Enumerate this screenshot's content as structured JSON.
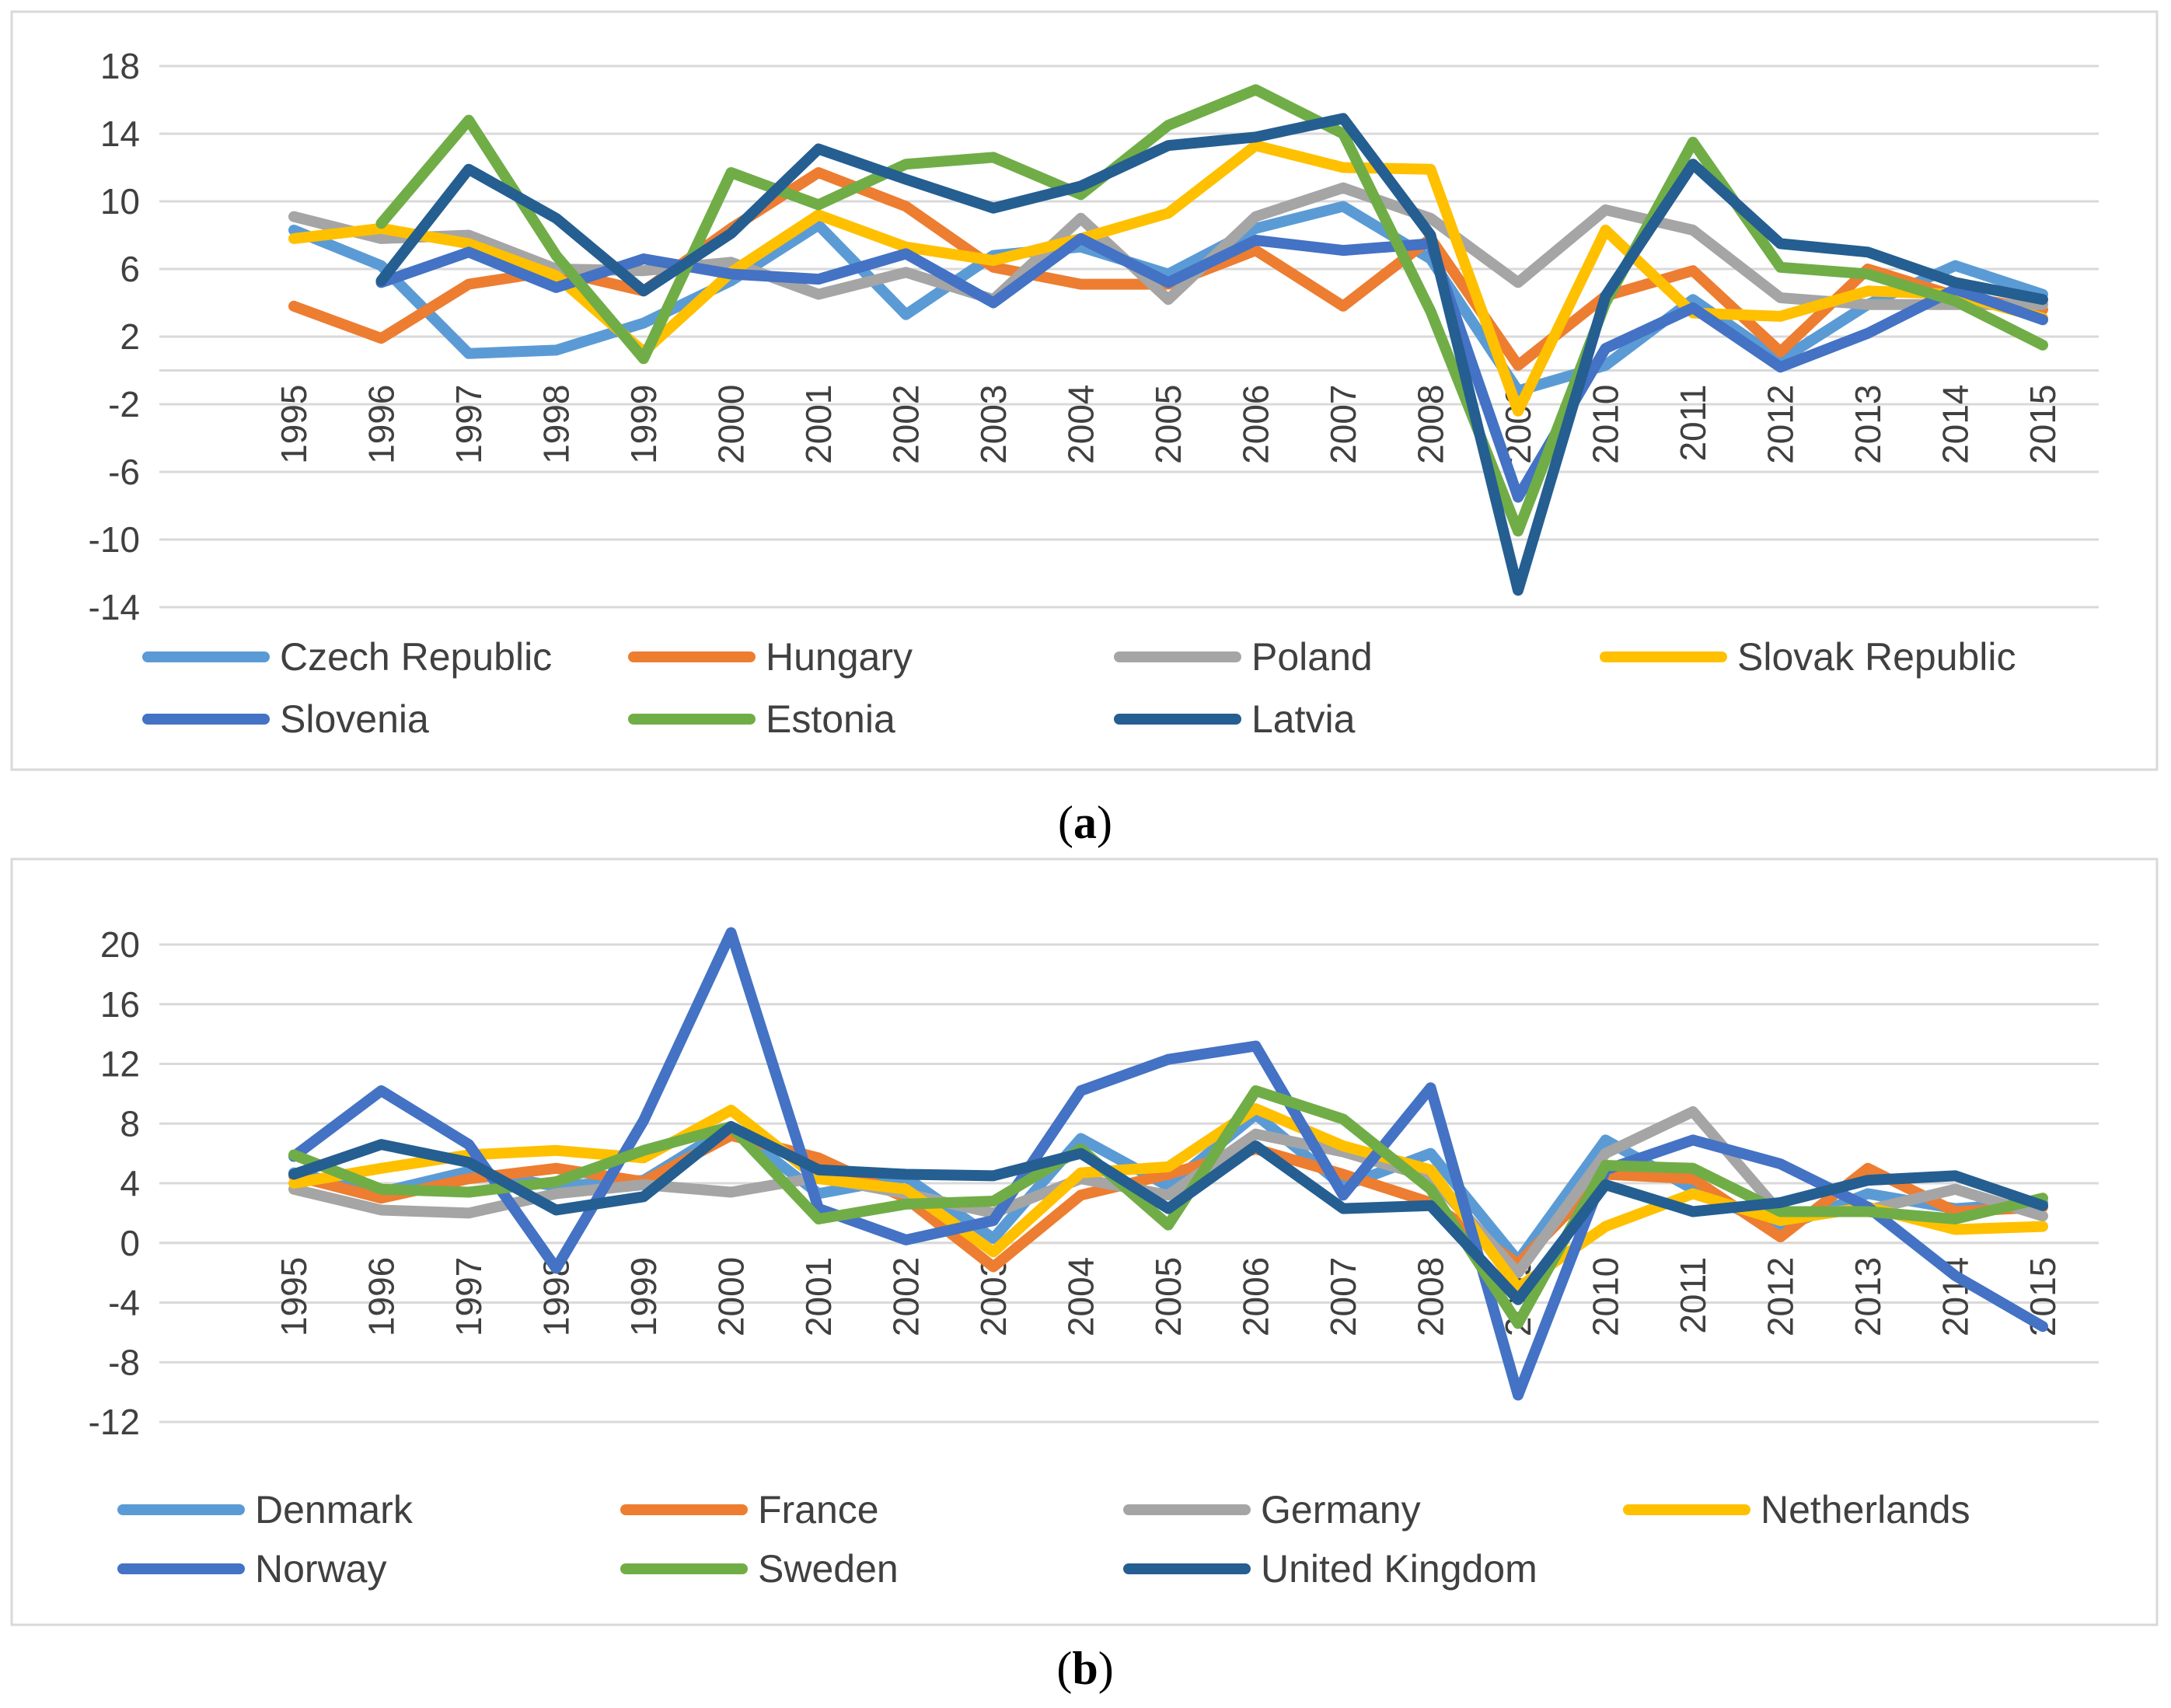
{
  "figure": {
    "caption_a_open": "(",
    "caption_a_letter": "a",
    "caption_a_close": ")",
    "caption_b_open": "(",
    "caption_b_letter": "b",
    "caption_b_close": ")"
  },
  "chart_data": [
    {
      "panel": "a",
      "type": "line",
      "title": "",
      "xlabel": "",
      "ylabel": "",
      "x": [
        "1995",
        "1996",
        "1997",
        "1998",
        "1999",
        "2000",
        "2001",
        "2002",
        "2003",
        "2004",
        "2005",
        "2006",
        "2007",
        "2008",
        "2009",
        "2010",
        "2011",
        "2012",
        "2013",
        "2014",
        "2015"
      ],
      "yticks": [
        18,
        14,
        10,
        6,
        2,
        -2,
        -6,
        -10,
        -14
      ],
      "ylim": [
        -14,
        18
      ],
      "legend_position": "bottom",
      "series": [
        {
          "name": "Czech Republic",
          "color": "#5b9bd5",
          "values": [
            8.3,
            6.2,
            1.0,
            1.2,
            2.8,
            5.3,
            8.6,
            3.3,
            6.8,
            7.3,
            5.7,
            8.4,
            9.7,
            6.6,
            -1.2,
            0.3,
            4.2,
            0.6,
            3.9,
            6.2,
            4.5
          ]
        },
        {
          "name": "Hungary",
          "color": "#ed7d31",
          "values": [
            3.8,
            1.9,
            5.1,
            5.9,
            4.7,
            8.4,
            11.7,
            9.7,
            6.1,
            5.1,
            5.1,
            7.1,
            3.8,
            7.8,
            0.3,
            4.4,
            5.9,
            1.1,
            6.0,
            4.4,
            3.6
          ]
        },
        {
          "name": "Poland",
          "color": "#a5a5a5",
          "values": [
            9.1,
            7.8,
            8.0,
            6.0,
            5.9,
            6.4,
            4.5,
            5.8,
            4.2,
            9.0,
            4.2,
            9.1,
            10.8,
            9.0,
            5.2,
            9.5,
            8.3,
            4.3,
            3.9,
            3.9,
            3.9
          ]
        },
        {
          "name": "Slovak Republic",
          "color": "#ffc000",
          "values": [
            7.8,
            8.4,
            7.5,
            5.6,
            1.1,
            5.8,
            9.2,
            7.3,
            6.5,
            7.8,
            9.3,
            13.3,
            12.0,
            11.9,
            -2.4,
            8.3,
            3.4,
            3.2,
            4.7,
            4.5,
            3.1
          ]
        },
        {
          "name": "Slovenia",
          "color": "#4472c4",
          "values": [
            null,
            5.2,
            7.0,
            4.9,
            6.6,
            5.7,
            5.4,
            6.9,
            4.0,
            7.8,
            5.2,
            7.7,
            7.1,
            7.5,
            -7.5,
            1.3,
            3.7,
            0.2,
            2.2,
            4.8,
            3.0
          ]
        },
        {
          "name": "Estonia",
          "color": "#70ad47",
          "values": [
            null,
            8.7,
            14.8,
            6.8,
            0.7,
            11.7,
            9.8,
            12.2,
            12.6,
            10.4,
            14.5,
            16.6,
            14.0,
            3.5,
            -9.5,
            4.0,
            13.5,
            6.1,
            5.7,
            4.1,
            1.5
          ]
        },
        {
          "name": "Latvia",
          "color": "#255e91",
          "values": [
            null,
            5.3,
            11.9,
            9.0,
            4.7,
            8.1,
            13.1,
            11.3,
            9.6,
            10.9,
            13.3,
            13.8,
            14.9,
            8.0,
            -13.0,
            4.4,
            12.2,
            7.5,
            7.0,
            5.2,
            4.2
          ]
        }
      ]
    },
    {
      "panel": "b",
      "type": "line",
      "title": "",
      "xlabel": "",
      "ylabel": "",
      "x": [
        "1995",
        "1996",
        "1997",
        "1998",
        "1999",
        "2000",
        "2001",
        "2002",
        "2003",
        "2004",
        "2005",
        "2006",
        "2007",
        "2008",
        "2009",
        "2010",
        "2011",
        "2012",
        "2013",
        "2014",
        "2015"
      ],
      "yticks": [
        20,
        16,
        12,
        8,
        4,
        0,
        -4,
        -8,
        -12
      ],
      "ylim": [
        -12,
        20
      ],
      "legend_position": "bottom",
      "series": [
        {
          "name": "Denmark",
          "color": "#5b9bd5",
          "values": [
            4.7,
            3.4,
            4.8,
            3.8,
            4.2,
            7.8,
            3.3,
            4.4,
            0.3,
            7.0,
            3.8,
            8.6,
            3.8,
            6.0,
            -1.2,
            6.9,
            3.6,
            1.0,
            3.3,
            2.3,
            2.7
          ]
        },
        {
          "name": "France",
          "color": "#ed7d31",
          "values": [
            4.5,
            3.0,
            4.3,
            5.0,
            4.1,
            7.2,
            5.7,
            3.0,
            -1.6,
            3.2,
            4.6,
            6.3,
            4.6,
            2.7,
            -1.4,
            4.6,
            4.3,
            0.4,
            5.0,
            2.1,
            2.4
          ]
        },
        {
          "name": "Germany",
          "color": "#a5a5a5",
          "values": [
            3.6,
            2.2,
            2.0,
            3.3,
            3.9,
            3.4,
            4.4,
            3.3,
            2.0,
            4.3,
            3.2,
            7.3,
            6.1,
            4.4,
            -2.0,
            6.0,
            8.8,
            2.0,
            2.2,
            3.6,
            1.8
          ]
        },
        {
          "name": "Netherlands",
          "color": "#ffc000",
          "values": [
            4.0,
            5.0,
            5.9,
            6.2,
            5.7,
            8.9,
            4.3,
            3.6,
            -0.6,
            4.7,
            5.1,
            9.0,
            6.5,
            4.9,
            -3.0,
            1.1,
            3.3,
            1.5,
            2.4,
            0.9,
            1.1
          ]
        },
        {
          "name": "Norway",
          "color": "#4472c4",
          "values": [
            5.8,
            10.2,
            6.6,
            -1.7,
            8.2,
            20.8,
            2.3,
            0.2,
            1.5,
            10.2,
            12.3,
            13.2,
            3.2,
            10.4,
            -10.2,
            4.9,
            6.9,
            5.3,
            2.4,
            -2.2,
            -5.6
          ]
        },
        {
          "name": "Sweden",
          "color": "#70ad47",
          "values": [
            5.9,
            3.6,
            3.4,
            4.1,
            6.2,
            7.8,
            1.6,
            2.6,
            2.8,
            6.3,
            1.2,
            10.2,
            8.3,
            3.6,
            -5.4,
            5.2,
            5.0,
            2.1,
            2.1,
            1.6,
            3.0
          ]
        },
        {
          "name": "United Kingdom",
          "color": "#255e91",
          "values": [
            4.6,
            6.6,
            5.4,
            2.2,
            3.1,
            7.8,
            4.9,
            4.6,
            4.5,
            6.0,
            2.3,
            6.5,
            2.3,
            2.5,
            -3.8,
            3.9,
            2.1,
            2.7,
            4.2,
            4.5,
            2.5
          ]
        }
      ]
    }
  ]
}
